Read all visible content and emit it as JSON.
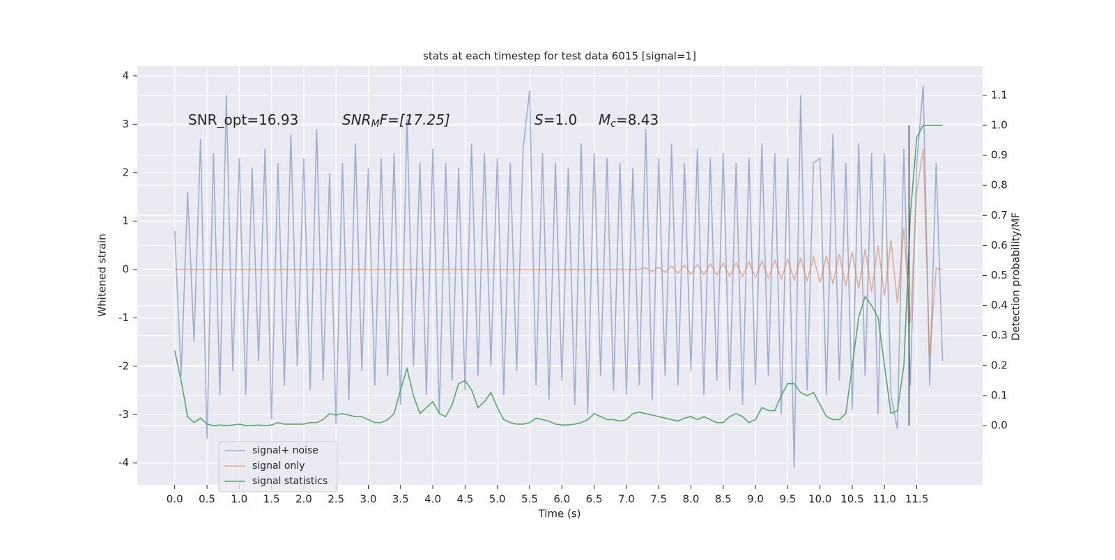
{
  "chart_data": {
    "type": "line",
    "title": "stats at each timestep for test data 6015 [signal=1]",
    "xlabel": "Time (s)",
    "ylabel": "Whitened strain",
    "y2label": "Detection probability/MF",
    "annotations": [
      {
        "parts": [
          "SNR_opt=16.93"
        ]
      },
      {
        "parts": [
          "SNR",
          "M",
          "F=[17.25]"
        ]
      },
      {
        "parts": [
          "S",
          "=1.0"
        ]
      },
      {
        "parts": [
          "M",
          "c",
          "=8.43"
        ]
      }
    ],
    "x": [
      0.0,
      0.1,
      0.2,
      0.3,
      0.4,
      0.5,
      0.6,
      0.7,
      0.8,
      0.9,
      1.0,
      1.1,
      1.2,
      1.3,
      1.4,
      1.5,
      1.6,
      1.7,
      1.8,
      1.9,
      2.0,
      2.1,
      2.2,
      2.3,
      2.4,
      2.5,
      2.6,
      2.7,
      2.8,
      2.9,
      3.0,
      3.1,
      3.2,
      3.3,
      3.4,
      3.5,
      3.6,
      3.7,
      3.8,
      3.9,
      4.0,
      4.1,
      4.2,
      4.3,
      4.4,
      4.5,
      4.6,
      4.7,
      4.8,
      4.9,
      5.0,
      5.1,
      5.2,
      5.3,
      5.4,
      5.5,
      5.6,
      5.7,
      5.8,
      5.9,
      6.0,
      6.1,
      6.2,
      6.3,
      6.4,
      6.5,
      6.6,
      6.7,
      6.8,
      6.9,
      7.0,
      7.1,
      7.2,
      7.3,
      7.4,
      7.5,
      7.6,
      7.7,
      7.8,
      7.9,
      8.0,
      8.1,
      8.2,
      8.3,
      8.4,
      8.5,
      8.6,
      8.7,
      8.8,
      8.9,
      9.0,
      9.1,
      9.2,
      9.3,
      9.4,
      9.5,
      9.6,
      9.7,
      9.8,
      9.9,
      10.0,
      10.1,
      10.2,
      10.3,
      10.4,
      10.5,
      10.6,
      10.7,
      10.8,
      10.9,
      11.0,
      11.1,
      11.2,
      11.3,
      11.4,
      11.5,
      11.6,
      11.7,
      11.8,
      11.9
    ],
    "series": [
      {
        "name": "signal+ noise",
        "color": "#4c72b0",
        "opacity": 0.5,
        "values": [
          0.8,
          -2.2,
          1.6,
          -1.5,
          2.7,
          -3.5,
          2.4,
          -2.6,
          3.6,
          -2.1,
          2.3,
          -2.6,
          2.1,
          -1.9,
          2.5,
          -3.1,
          2.2,
          -2.4,
          2.8,
          -2.0,
          2.3,
          -2.5,
          2.9,
          -2.3,
          2.0,
          -3.2,
          2.2,
          -2.7,
          2.6,
          -2.1,
          2.1,
          -2.4,
          2.3,
          -2.2,
          2.4,
          -2.8,
          3.1,
          -2.0,
          2.2,
          -2.6,
          2.5,
          -3.0,
          2.2,
          -2.3,
          2.1,
          -2.5,
          2.6,
          -2.2,
          2.4,
          -2.0,
          2.3,
          -2.6,
          2.2,
          -2.1,
          2.5,
          3.7,
          -2.4,
          2.4,
          -2.7,
          2.2,
          -2.3,
          2.1,
          -2.8,
          2.6,
          -3.0,
          2.4,
          -2.2,
          2.3,
          -2.5,
          2.2,
          -2.6,
          2.1,
          -2.4,
          2.9,
          -2.7,
          2.3,
          -2.2,
          2.6,
          -2.4,
          2.2,
          -2.1,
          2.5,
          -2.6,
          2.3,
          -2.3,
          2.4,
          -2.5,
          2.2,
          -2.8,
          2.3,
          -2.4,
          2.6,
          -2.2,
          2.4,
          -3.0,
          2.3,
          -4.1,
          3.6,
          -2.5,
          2.2,
          2.3,
          -2.6,
          2.8,
          -2.3,
          2.2,
          -2.9,
          2.6,
          -2.2,
          2.4,
          -3.0,
          2.4,
          -2.6,
          -3.3,
          2.5,
          -2.4,
          2.2,
          3.8,
          -2.4,
          2.2,
          -1.9
        ]
      },
      {
        "name": "signal only",
        "color": "#dd8452",
        "opacity": 0.6,
        "values": [
          0,
          0,
          0,
          0,
          0,
          0,
          0,
          0,
          0,
          0,
          0,
          0,
          0,
          0,
          0,
          0,
          0,
          0,
          0,
          0,
          0,
          0,
          0,
          0,
          0,
          0,
          0,
          0,
          0,
          0,
          0,
          0,
          0,
          0,
          0,
          0,
          0,
          0,
          0,
          0,
          0,
          0,
          0,
          0,
          0,
          0,
          0,
          0,
          0,
          0,
          0,
          0,
          0,
          0,
          0,
          0,
          0,
          0,
          0,
          0,
          0,
          0,
          0,
          0,
          0,
          0,
          0,
          0,
          0,
          0,
          0,
          0,
          0,
          0.03,
          -0.04,
          0.05,
          -0.06,
          0.07,
          -0.08,
          0.09,
          -0.1,
          0.1,
          -0.11,
          0.12,
          -0.12,
          0.13,
          -0.14,
          0.14,
          -0.15,
          0.16,
          -0.17,
          0.17,
          -0.18,
          0.19,
          -0.2,
          0.21,
          -0.22,
          0.23,
          -0.24,
          0.25,
          -0.27,
          0.28,
          -0.3,
          0.32,
          -0.34,
          0.36,
          -0.39,
          0.42,
          -0.46,
          0.5,
          -0.55,
          0.6,
          -0.7,
          0.85,
          -1.1,
          1.6,
          2.5,
          -1.8,
          0.02,
          0.0
        ]
      },
      {
        "name": "signal statistics",
        "color": "#55a868",
        "opacity": 1,
        "axis": "y2",
        "values": [
          0.25,
          0.15,
          0.03,
          0.01,
          0.025,
          0.005,
          0.0,
          0.002,
          0.0,
          0.002,
          0.005,
          0.0,
          0.0,
          0.002,
          0.0,
          0.002,
          0.01,
          0.005,
          0.005,
          0.005,
          0.005,
          0.01,
          0.01,
          0.02,
          0.04,
          0.035,
          0.04,
          0.035,
          0.03,
          0.03,
          0.02,
          0.01,
          0.01,
          0.02,
          0.04,
          0.12,
          0.19,
          0.1,
          0.04,
          0.06,
          0.08,
          0.04,
          0.03,
          0.07,
          0.14,
          0.15,
          0.12,
          0.06,
          0.08,
          0.11,
          0.06,
          0.02,
          0.01,
          0.005,
          0.005,
          0.01,
          0.025,
          0.02,
          0.015,
          0.005,
          0.002,
          0.002,
          0.005,
          0.01,
          0.02,
          0.04,
          0.03,
          0.02,
          0.02,
          0.015,
          0.02,
          0.04,
          0.045,
          0.04,
          0.035,
          0.03,
          0.025,
          0.02,
          0.015,
          0.025,
          0.03,
          0.02,
          0.03,
          0.02,
          0.01,
          0.01,
          0.03,
          0.04,
          0.03,
          0.01,
          0.02,
          0.06,
          0.05,
          0.05,
          0.1,
          0.14,
          0.14,
          0.11,
          0.1,
          0.11,
          0.07,
          0.03,
          0.02,
          0.02,
          0.04,
          0.2,
          0.36,
          0.43,
          0.4,
          0.36,
          0.2,
          0.04,
          0.05,
          0.2,
          0.7,
          0.96,
          1.0,
          1.0,
          1.0,
          1.0
        ]
      }
    ],
    "vlines": [
      {
        "x": 11.38,
        "ymin": 0.0,
        "ymax": 1.0,
        "axis": "y2",
        "color": "#444444"
      }
    ],
    "xlim": [
      -0.58,
      12.52
    ],
    "xticks": [
      {
        "value": 0,
        "label": "0.0"
      },
      0.5,
      {
        "value": 1,
        "label": "1.0"
      },
      1.5,
      {
        "value": 2,
        "label": "2.0"
      },
      2.5,
      {
        "value": 3,
        "label": "3.0"
      },
      3.5,
      {
        "value": 4,
        "label": "4.0"
      },
      4.5,
      {
        "value": 5,
        "label": "5.0"
      },
      5.5,
      {
        "value": 6,
        "label": "6.0"
      },
      6.5,
      {
        "value": 7,
        "label": "7.0"
      },
      7.5,
      {
        "value": 8,
        "label": "8.0"
      },
      8.5,
      {
        "value": 9,
        "label": "9.0"
      },
      9.5,
      {
        "value": 10,
        "label": "10.0"
      },
      10.5,
      {
        "value": 11,
        "label": "11.0"
      },
      11.5
    ],
    "ylim": [
      -4.45,
      4.2
    ],
    "yticks": [
      -4,
      -3,
      -2,
      -1,
      0,
      1,
      2,
      3,
      4
    ],
    "y2lim": [
      -0.197,
      1.197
    ],
    "y2ticks": [
      {
        "value": 0,
        "label": "0.0"
      },
      0.1,
      0.2,
      0.3,
      0.4,
      0.5,
      0.6,
      0.7,
      0.8,
      0.9,
      {
        "value": 1,
        "label": "1.0"
      },
      1.1
    ],
    "grid": true,
    "legend": "lower left",
    "background": "#eaeaf2"
  }
}
